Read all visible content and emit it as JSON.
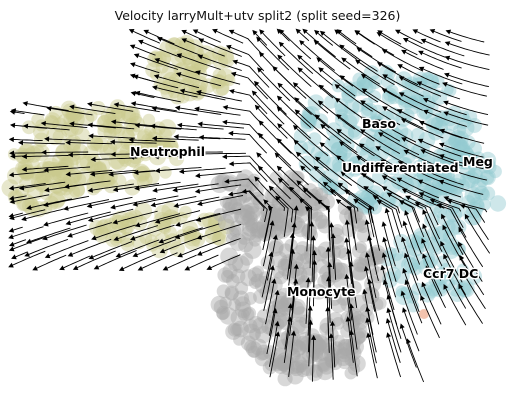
{
  "title": "Velocity larryMult+utv split2 (split seed=326)",
  "colors": {
    "neutrophil": "#c9c98f",
    "undifferentiated": "#93cad0",
    "monocyte": "#a9a9a9",
    "ccr7_dc": "#f0b49a",
    "stream": "#000000"
  },
  "clusters": [
    {
      "key": "neutrophil",
      "label": "Neutrophil"
    },
    {
      "key": "baso",
      "label": "Baso"
    },
    {
      "key": "undifferentiated",
      "label": "Undifferentiated"
    },
    {
      "key": "meg",
      "label": "Meg"
    },
    {
      "key": "monocyte",
      "label": "Monocyte"
    },
    {
      "key": "ccr7_dc",
      "label": "Ccr7 DC"
    }
  ]
}
